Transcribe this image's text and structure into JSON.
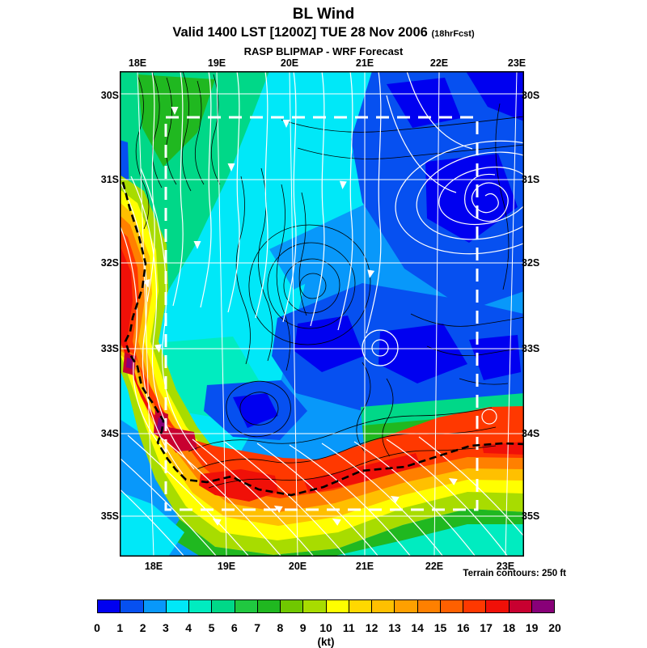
{
  "header": {
    "title": "BL Wind",
    "valid_line": "Valid 1400 LST [1200Z] TUE 28 Nov 2006",
    "fcst_suffix": "(18hrFcst)",
    "source_line": "RASP BLIPMAP - WRF Forecast"
  },
  "map": {
    "lon_ticks": [
      "18E",
      "19E",
      "20E",
      "21E",
      "22E",
      "23E"
    ],
    "lat_ticks": [
      "30S",
      "31S",
      "32S",
      "33S",
      "34S",
      "35S"
    ],
    "terrain_note": "Terrain contours: 250 ft"
  },
  "colorbar": {
    "unit": "(kt)",
    "tick_labels": [
      "0",
      "1",
      "2",
      "3",
      "4",
      "5",
      "6",
      "7",
      "8",
      "9",
      "10",
      "11",
      "12",
      "13",
      "14",
      "15",
      "16",
      "17",
      "18",
      "19",
      "20"
    ],
    "colors": [
      "#0000F0",
      "#0650F0",
      "#0898FA",
      "#00E8F8",
      "#00ECC0",
      "#00D888",
      "#20C840",
      "#20B820",
      "#70C800",
      "#A8DC00",
      "#FFFF00",
      "#FFD800",
      "#FFC000",
      "#FFA000",
      "#FF8000",
      "#FF6000",
      "#FF3800",
      "#F01008",
      "#C80030",
      "#880078"
    ]
  },
  "chart_data": {
    "type": "heatmap",
    "title": "BL Wind",
    "subtitle": "Valid 1400 LST [1200Z] TUE 28 Nov 2006 (18hrFcst)",
    "source": "RASP BLIPMAP - WRF Forecast",
    "x_axis": {
      "ticks": [
        "18E",
        "19E",
        "20E",
        "21E",
        "22E",
        "23E"
      ],
      "unit": "degrees east longitude"
    },
    "y_axis": {
      "ticks": [
        "30S",
        "31S",
        "32S",
        "33S",
        "34S",
        "35S"
      ],
      "unit": "degrees south latitude"
    },
    "colorbar": {
      "label": "(kt)",
      "min": 0,
      "max": 20,
      "tick_labels": [
        0,
        1,
        2,
        3,
        4,
        5,
        6,
        7,
        8,
        9,
        10,
        11,
        12,
        13,
        14,
        15,
        16,
        17,
        18,
        19,
        20
      ],
      "colors": [
        "#0000F0",
        "#0650F0",
        "#0898FA",
        "#00E8F8",
        "#00ECC0",
        "#00D888",
        "#20C840",
        "#20B820",
        "#70C800",
        "#A8DC00",
        "#FFFF00",
        "#FFD800",
        "#FFC000",
        "#FFA000",
        "#FF8000",
        "#FF6000",
        "#FF3800",
        "#F01008",
        "#C80030",
        "#880078"
      ]
    },
    "overlays": [
      "boundary-layer wind speed filled contours (colorbar, kt)",
      "terrain contours, black solid lines, 250 ft interval",
      "surface wind streamlines, white lines with arrowheads",
      "coastline, heavy black dashed line",
      "latitude/longitude graticule, thin white lines",
      "nested model domain boundary, white dashed rectangle"
    ],
    "features": [
      {
        "region": "offshore west coast band (~17.8-18.4E, 31.5-34.5S)",
        "bl_wind_kt": "12-19 with small 18-20 kt maxima"
      },
      {
        "region": "south coast band (~19-23E near 34.5S)",
        "bl_wind_kt": "10-17"
      },
      {
        "region": "northwest interior (18-19.5E, 30-31.5S)",
        "bl_wind_kt": "5-8"
      },
      {
        "region": "central and northeast interior (20-23E, 30-34S)",
        "bl_wind_kt": "1-4"
      },
      {
        "region": "closed cyclonic streamline circulation near 22.7E, 31.2S",
        "bl_wind_kt": "0-2"
      },
      {
        "region": "far south offshore (south of ~35S)",
        "bl_wind_kt": "4-9"
      }
    ],
    "note": "Terrain contours: 250 ft"
  }
}
